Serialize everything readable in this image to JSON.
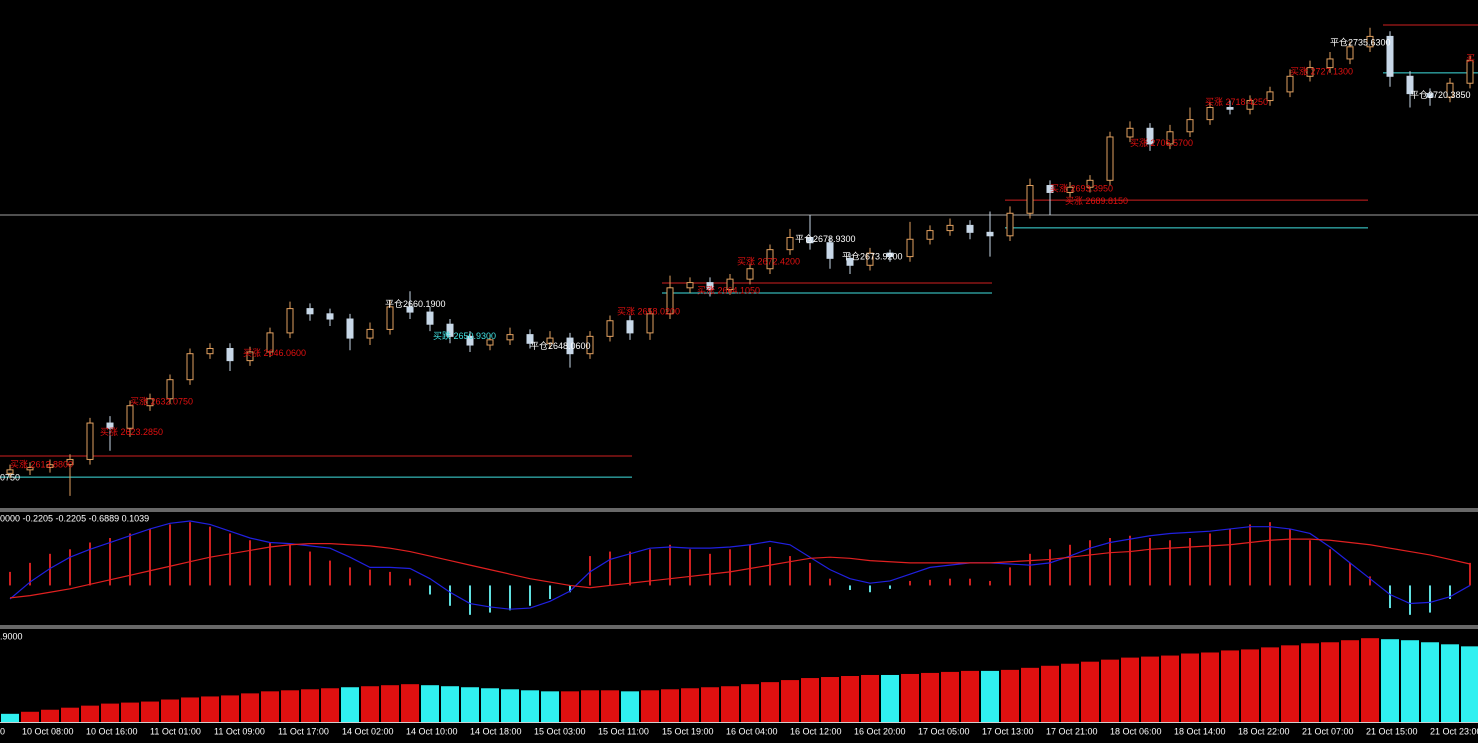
{
  "chart_data": [
    {
      "type": "candlestick",
      "up_color": "#e0a060",
      "down_color": "#c8d8e8",
      "open": [
        2611.5,
        2612.5,
        2613.2,
        2614.0,
        2615.5,
        2626.0,
        2624.5,
        2631.0,
        2633.0,
        2638.5,
        2646.0,
        2647.5,
        2644.0,
        2646.5,
        2652.0,
        2659.0,
        2657.5,
        2656.0,
        2650.5,
        2653.0,
        2659.5,
        2658.0,
        2654.5,
        2651.0,
        2648.5,
        2650.0,
        2651.5,
        2649.0,
        2650.5,
        2646.0,
        2651.0,
        2655.5,
        2652.0,
        2657.5,
        2665.0,
        2666.5,
        2664.5,
        2667.5,
        2670.5,
        2676.0,
        2679.5,
        2678.0,
        2673.5,
        2671.5,
        2675.0,
        2674.0,
        2679.0,
        2681.5,
        2683.0,
        2681.0,
        2680.0,
        2686.5,
        2694.5,
        2692.5,
        2694.0,
        2696.0,
        2708.5,
        2711.0,
        2706.5,
        2710.0,
        2713.5,
        2717.0,
        2716.5,
        2719.0,
        2721.5,
        2726.0,
        2728.5,
        2731.0,
        2734.5,
        2737.5,
        2726.0,
        2721.0,
        2720.0,
        2724.0
      ],
      "high": [
        2614.0,
        2614.7,
        2615.5,
        2617.0,
        2627.5,
        2628.0,
        2632.5,
        2634.5,
        2640.0,
        2647.5,
        2649.0,
        2649.0,
        2648.0,
        2653.5,
        2661.0,
        2660.5,
        2659.0,
        2657.5,
        2655.0,
        2661.5,
        2664.0,
        2659.5,
        2656.0,
        2652.5,
        2651.5,
        2653.5,
        2653.0,
        2652.5,
        2652.0,
        2652.5,
        2657.0,
        2657.0,
        2659.0,
        2668.5,
        2668.0,
        2668.0,
        2669.0,
        2672.0,
        2677.5,
        2682.0,
        2686.0,
        2679.5,
        2675.0,
        2676.5,
        2676.0,
        2684.0,
        2683.0,
        2685.0,
        2684.5,
        2687.0,
        2688.5,
        2696.5,
        2696.0,
        2695.5,
        2697.5,
        2710.0,
        2713.0,
        2712.5,
        2712.0,
        2717.0,
        2718.5,
        2719.0,
        2720.5,
        2723.0,
        2728.0,
        2730.5,
        2733.0,
        2736.0,
        2740.0,
        2739.0,
        2727.5,
        2722.5,
        2725.5,
        2732.0
      ],
      "low": [
        2610.0,
        2611.0,
        2611.7,
        2605.0,
        2614.0,
        2618.0,
        2622.0,
        2629.5,
        2631.5,
        2637.0,
        2644.5,
        2641.0,
        2642.5,
        2645.0,
        2650.5,
        2655.5,
        2654.0,
        2647.0,
        2648.5,
        2651.5,
        2656.0,
        2652.5,
        2649.0,
        2646.5,
        2647.0,
        2648.5,
        2647.5,
        2647.5,
        2642.0,
        2644.5,
        2649.5,
        2650.0,
        2650.0,
        2656.0,
        2663.5,
        2662.5,
        2663.0,
        2666.0,
        2669.0,
        2674.5,
        2676.0,
        2670.5,
        2669.0,
        2670.0,
        2672.5,
        2672.5,
        2677.5,
        2680.0,
        2679.0,
        2674.0,
        2678.5,
        2685.0,
        2686.0,
        2691.0,
        2692.5,
        2694.5,
        2707.0,
        2704.5,
        2705.0,
        2708.5,
        2712.0,
        2715.0,
        2715.0,
        2717.5,
        2720.0,
        2724.5,
        2727.0,
        2729.5,
        2733.0,
        2723.0,
        2717.0,
        2717.5,
        2718.5,
        2722.5
      ],
      "close": [
        2612.5,
        2613.2,
        2614.0,
        2615.5,
        2626.0,
        2624.5,
        2631.0,
        2633.0,
        2638.5,
        2646.0,
        2647.5,
        2644.0,
        2646.5,
        2652.0,
        2659.0,
        2657.5,
        2656.0,
        2650.5,
        2653.0,
        2659.5,
        2658.0,
        2654.5,
        2651.0,
        2648.5,
        2650.0,
        2651.5,
        2649.0,
        2650.5,
        2646.0,
        2651.0,
        2655.5,
        2652.0,
        2657.5,
        2665.0,
        2666.5,
        2664.5,
        2667.5,
        2670.5,
        2676.0,
        2679.5,
        2678.0,
        2673.5,
        2671.5,
        2675.0,
        2674.0,
        2679.0,
        2681.5,
        2683.0,
        2681.0,
        2680.0,
        2686.5,
        2694.5,
        2692.5,
        2694.0,
        2696.0,
        2708.5,
        2711.0,
        2706.5,
        2710.0,
        2713.5,
        2717.0,
        2716.5,
        2719.0,
        2721.5,
        2726.0,
        2728.5,
        2731.0,
        2734.5,
        2737.5,
        2726.0,
        2721.0,
        2720.0,
        2724.0,
        2730.5
      ],
      "ylim": [
        2601.5,
        2748
      ],
      "levels": [
        {
          "value": 2686.0,
          "color": "#a0a0a0"
        },
        {
          "value": 2616.5,
          "color": "#d02020"
        },
        {
          "value": 2610.4,
          "color": "#40e0e0"
        },
        {
          "value": 2666.4,
          "color": "#d02020"
        },
        {
          "value": 2663.5,
          "color": "#40e0e0"
        },
        {
          "value": 2690.3,
          "color": "#d02020"
        },
        {
          "value": 2682.3,
          "color": "#40e0e0"
        },
        {
          "value": 2740.8,
          "color": "#d02020"
        },
        {
          "value": 2727.0,
          "color": "#40e0e0"
        }
      ],
      "annotations": [
        {
          "label": "买涨 2613.8800",
          "value": 2613.88,
          "color": "#e01010"
        },
        {
          "label": "0750",
          "value": 2610.075,
          "color": "#ffffff"
        },
        {
          "label": "买涨 2623.2850",
          "value": 2623.285,
          "color": "#e01010"
        },
        {
          "label": "买涨 2632.0750",
          "value": 2632.075,
          "color": "#e01010"
        },
        {
          "label": "买涨 2646.0600",
          "value": 2646.06,
          "color": "#e01010"
        },
        {
          "label": "平仓2660.1900",
          "value": 2660.19,
          "color": "#ffffff"
        },
        {
          "label": "买跌 2650.9300",
          "value": 2650.93,
          "color": "#40e0e0"
        },
        {
          "label": "平仓2648.0600",
          "value": 2648.06,
          "color": "#ffffff"
        },
        {
          "label": "买涨 2658.0200",
          "value": 2658.02,
          "color": "#e01010"
        },
        {
          "label": "买涨 2664.1050",
          "value": 2664.105,
          "color": "#e01010"
        },
        {
          "label": "买涨 2672.4200",
          "value": 2672.42,
          "color": "#e01010"
        },
        {
          "label": "平仓2678.9300",
          "value": 2678.93,
          "color": "#ffffff"
        },
        {
          "label": "平仓2673.9200",
          "value": 2673.92,
          "color": "#ffffff"
        },
        {
          "label": "买涨 2689.8150",
          "value": 2689.815,
          "color": "#e01010"
        },
        {
          "label": "买涨 2693.3950",
          "value": 2693.395,
          "color": "#e01010"
        },
        {
          "label": "买涨 2706.5700",
          "value": 2706.57,
          "color": "#e01010"
        },
        {
          "label": "买涨 2718.4250",
          "value": 2718.425,
          "color": "#e01010"
        },
        {
          "label": "买涨 2727.1300",
          "value": 2727.13,
          "color": "#e01010"
        },
        {
          "label": "平仓2735.6300",
          "value": 2735.63,
          "color": "#ffffff"
        },
        {
          "label": "平仓2720.3850",
          "value": 2720.385,
          "color": "#ffffff"
        },
        {
          "label": "买",
          "value": 2731.0,
          "color": "#e01010"
        }
      ]
    },
    {
      "type": "macd",
      "header": "0000 -0.2205 -0.2205 -0.6889 0.1039",
      "ylim": [
        -3.5,
        6.5
      ],
      "histogram": {
        "color": "#d02020",
        "negative_color": "#60e0e0",
        "values": [
          1.2,
          2.0,
          2.8,
          3.2,
          3.8,
          4.2,
          4.6,
          5.0,
          5.4,
          5.6,
          5.2,
          4.6,
          4.0,
          3.8,
          3.6,
          3.0,
          2.2,
          1.6,
          1.4,
          1.2,
          0.6,
          -0.8,
          -1.8,
          -2.6,
          -2.4,
          -2.2,
          -1.8,
          -1.2,
          -0.6,
          2.6,
          3.0,
          3.0,
          3.2,
          3.6,
          3.2,
          2.8,
          3.2,
          3.6,
          3.4,
          2.6,
          2.0,
          0.6,
          -0.4,
          -0.6,
          -0.3,
          0.4,
          0.5,
          0.6,
          0.6,
          0.4,
          1.6,
          2.8,
          3.2,
          3.6,
          4.0,
          4.2,
          4.4,
          4.2,
          4.0,
          4.2,
          4.6,
          5.0,
          5.4,
          5.6,
          5.0,
          4.0,
          3.2,
          2.0,
          0.8,
          -2.0,
          -2.6,
          -2.4,
          -1.2,
          2.0
        ]
      },
      "series": [
        {
          "color": "#2020e0",
          "values": [
            -1.2,
            0.3,
            1.5,
            2.5,
            3.2,
            3.8,
            4.4,
            5.0,
            5.5,
            5.7,
            5.4,
            4.8,
            4.2,
            3.8,
            3.7,
            3.5,
            3.3,
            2.5,
            1.6,
            1.6,
            1.5,
            0.6,
            -0.6,
            -1.6,
            -1.9,
            -2.1,
            -2.0,
            -1.4,
            -0.5,
            1.2,
            2.3,
            2.8,
            3.3,
            3.4,
            3.3,
            3.3,
            3.4,
            3.6,
            3.9,
            3.6,
            2.5,
            1.4,
            0.6,
            0.2,
            0.4,
            1.0,
            1.6,
            1.8,
            2.0,
            2.0,
            1.9,
            1.8,
            2.0,
            2.6,
            3.3,
            3.8,
            4.1,
            4.4,
            4.6,
            4.7,
            4.8,
            5.0,
            5.2,
            5.2,
            5.0,
            4.6,
            3.4,
            2.0,
            0.6,
            -0.8,
            -1.6,
            -1.5,
            -1.0,
            0.0
          ]
        },
        {
          "color": "#e02020",
          "values": [
            -1.1,
            -0.9,
            -0.6,
            -0.3,
            0.1,
            0.5,
            0.9,
            1.3,
            1.7,
            2.1,
            2.5,
            2.8,
            3.1,
            3.4,
            3.6,
            3.7,
            3.7,
            3.6,
            3.5,
            3.3,
            3.0,
            2.6,
            2.2,
            1.8,
            1.4,
            1.0,
            0.6,
            0.3,
            0.0,
            -0.2,
            0.0,
            0.2,
            0.4,
            0.6,
            0.8,
            1.0,
            1.2,
            1.5,
            1.8,
            2.1,
            2.4,
            2.5,
            2.4,
            2.2,
            2.1,
            2.0,
            2.0,
            2.0,
            2.0,
            2.0,
            2.1,
            2.2,
            2.3,
            2.5,
            2.7,
            2.9,
            3.0,
            3.2,
            3.3,
            3.4,
            3.5,
            3.6,
            3.8,
            4.0,
            4.1,
            4.1,
            4.0,
            3.8,
            3.6,
            3.3,
            3.0,
            2.7,
            2.3,
            1.9
          ]
        }
      ]
    },
    {
      "type": "bar",
      "header": ".9000",
      "ylim": [
        0,
        90
      ],
      "series": [
        {
          "color": "#e01010",
          "values": [
            null,
            10,
            12,
            14,
            16,
            18,
            19,
            20,
            22,
            24,
            25,
            26,
            28,
            30,
            31,
            32,
            33,
            null,
            35,
            36,
            37,
            null,
            null,
            null,
            null,
            null,
            null,
            null,
            30,
            31,
            31,
            null,
            31,
            32,
            33,
            34,
            35,
            37,
            39,
            41,
            43,
            44,
            45,
            46,
            null,
            47,
            48,
            49,
            50,
            null,
            51,
            53,
            55,
            57,
            59,
            61,
            63,
            64,
            65,
            67,
            68,
            70,
            71,
            73,
            75,
            77,
            78,
            80,
            82,
            null,
            null,
            null,
            null,
            null
          ]
        },
        {
          "color": "#30f0f0",
          "values": [
            8,
            null,
            null,
            null,
            null,
            null,
            null,
            null,
            null,
            null,
            null,
            null,
            null,
            null,
            null,
            null,
            null,
            34,
            null,
            null,
            null,
            36,
            35,
            34,
            33,
            32,
            31,
            30,
            null,
            null,
            null,
            30,
            null,
            null,
            null,
            null,
            null,
            null,
            null,
            null,
            null,
            null,
            null,
            null,
            46,
            null,
            null,
            null,
            null,
            50,
            null,
            null,
            null,
            null,
            null,
            null,
            null,
            null,
            null,
            null,
            null,
            null,
            null,
            null,
            null,
            null,
            null,
            null,
            null,
            81,
            80,
            78,
            76,
            74
          ]
        }
      ],
      "xtick_labels": [
        "0",
        "10 Oct 08:00",
        "10 Oct 16:00",
        "11 Oct 01:00",
        "11 Oct 09:00",
        "11 Oct 17:00",
        "14 Oct 02:00",
        "14 Oct 10:00",
        "14 Oct 18:00",
        "15 Oct 03:00",
        "15 Oct 11:00",
        "15 Oct 19:00",
        "16 Oct 04:00",
        "16 Oct 12:00",
        "16 Oct 20:00",
        "17 Oct 05:00",
        "17 Oct 13:00",
        "17 Oct 21:00",
        "18 Oct 06:00",
        "18 Oct 14:00",
        "18 Oct 22:00",
        "21 Oct 07:00",
        "21 Oct 15:00",
        "21 Oct 23:00"
      ]
    }
  ]
}
